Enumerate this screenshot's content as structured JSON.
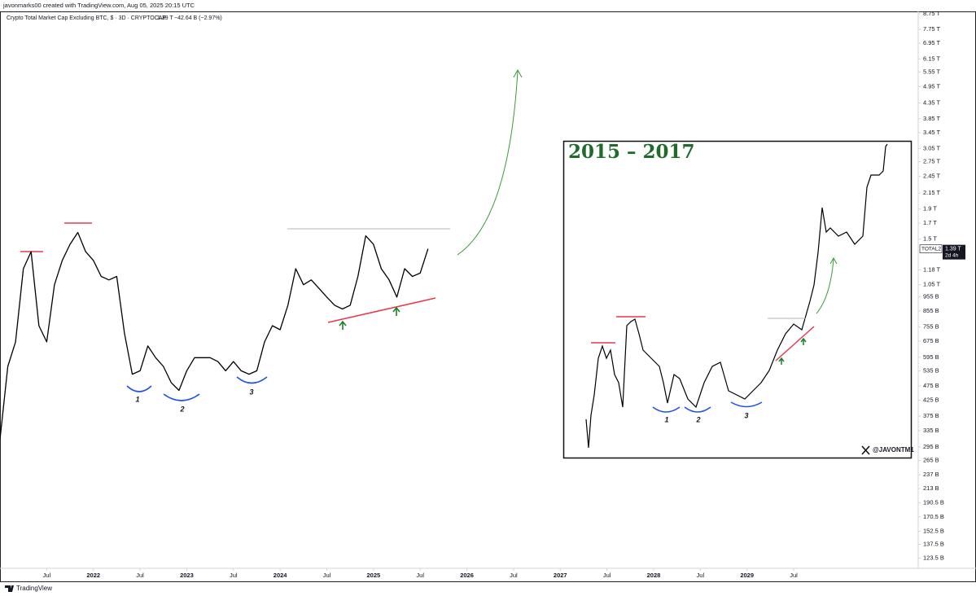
{
  "header": {
    "credit": "javonmarks00 created with TradingView.com, Aug 05, 2025 20:15 UTC",
    "symbol": "Crypto Total Market Cap Excluding BTC, $ · 3D · CRYPTOCAP",
    "last": "1.39 T",
    "change": "−42.64 B (−2.97%)"
  },
  "chart_data": {
    "type": "line",
    "color": "#000000",
    "log_scale": true,
    "grid": false,
    "x": [
      "2021-01",
      "2021-02",
      "2021-03",
      "2021-04",
      "2021-05",
      "2021-06",
      "2021-07",
      "2021-08",
      "2021-09",
      "2021-10",
      "2021-11",
      "2021-12",
      "2022-01",
      "2022-02",
      "2022-03",
      "2022-04",
      "2022-05",
      "2022-06",
      "2022-07",
      "2022-08",
      "2022-09",
      "2022-10",
      "2022-11",
      "2022-12",
      "2023-01",
      "2023-02",
      "2023-03",
      "2023-04",
      "2023-05",
      "2023-06",
      "2023-07",
      "2023-08",
      "2023-09",
      "2023-10",
      "2023-11",
      "2023-12",
      "2024-01",
      "2024-02",
      "2024-03",
      "2024-04",
      "2024-05",
      "2024-06",
      "2024-07",
      "2024-08",
      "2024-09",
      "2024-10",
      "2024-11",
      "2024-12",
      "2025-01",
      "2025-02",
      "2025-03",
      "2025-04",
      "2025-05",
      "2025-06",
      "2025-07",
      "2025-08"
    ],
    "values": [
      313000000000,
      554000000000,
      671000000000,
      1190000000000,
      1360000000000,
      762000000000,
      671000000000,
      1050000000000,
      1270000000000,
      1440000000000,
      1580000000000,
      1360000000000,
      1270000000000,
      1120000000000,
      1090000000000,
      1120000000000,
      718000000000,
      521000000000,
      535000000000,
      650000000000,
      593000000000,
      554000000000,
      488000000000,
      459000000000,
      535000000000,
      593000000000,
      593000000000,
      593000000000,
      575000000000,
      535000000000,
      575000000000,
      535000000000,
      521000000000,
      535000000000,
      671000000000,
      762000000000,
      738000000000,
      894000000000,
      1190000000000,
      1050000000000,
      1090000000000,
      1020000000000,
      953000000000,
      894000000000,
      868000000000,
      894000000000,
      1120000000000,
      1540000000000,
      1440000000000,
      1190000000000,
      1090000000000,
      953000000000,
      1190000000000,
      1120000000000,
      1150000000000,
      1390000000000
    ],
    "xlim": [
      "2021-01",
      "2030-11"
    ],
    "xticks": [
      {
        "value": "2021-07",
        "label": "Jul"
      },
      {
        "value": "2022-01",
        "label": "2022"
      },
      {
        "value": "2022-07",
        "label": "Jul"
      },
      {
        "value": "2023-01",
        "label": "2023"
      },
      {
        "value": "2023-07",
        "label": "Jul"
      },
      {
        "value": "2024-01",
        "label": "2024"
      },
      {
        "value": "2024-07",
        "label": "Jul"
      },
      {
        "value": "2025-01",
        "label": "2025"
      },
      {
        "value": "2025-07",
        "label": "Jul"
      },
      {
        "value": "2026-01",
        "label": "2026"
      },
      {
        "value": "2026-07",
        "label": "Jul"
      },
      {
        "value": "2027-01",
        "label": "2027"
      },
      {
        "value": "2027-07",
        "label": "Jul"
      },
      {
        "value": "2028-01",
        "label": "2028"
      },
      {
        "value": "2028-07",
        "label": "Jul"
      },
      {
        "value": "2029-01",
        "label": "2029"
      },
      {
        "value": "2029-07",
        "label": "Jul"
      }
    ],
    "ylim": [
      114000000000,
      8920000000000
    ],
    "yticks": [
      {
        "value": 8750000000000,
        "label": "8.75 T"
      },
      {
        "value": 7750000000000,
        "label": "7.75 T"
      },
      {
        "value": 6950000000000,
        "label": "6.95 T"
      },
      {
        "value": 6150000000000,
        "label": "6.15 T"
      },
      {
        "value": 5550000000000,
        "label": "5.55 T"
      },
      {
        "value": 4950000000000,
        "label": "4.95 T"
      },
      {
        "value": 4350000000000,
        "label": "4.35 T"
      },
      {
        "value": 3850000000000,
        "label": "3.85 T"
      },
      {
        "value": 3450000000000,
        "label": "3.45 T"
      },
      {
        "value": 3050000000000,
        "label": "3.05 T"
      },
      {
        "value": 2750000000000,
        "label": "2.75 T"
      },
      {
        "value": 2450000000000,
        "label": "2.45 T"
      },
      {
        "value": 2150000000000,
        "label": "2.15 T"
      },
      {
        "value": 1900000000000,
        "label": "1.9 T"
      },
      {
        "value": 1700000000000,
        "label": "1.7 T"
      },
      {
        "value": 1500000000000,
        "label": "1.5 T"
      },
      {
        "value": 1180000000000,
        "label": "1.18 T"
      },
      {
        "value": 1050000000000,
        "label": "1.05 T"
      },
      {
        "value": 955000000000,
        "label": "955 B"
      },
      {
        "value": 855000000000,
        "label": "855 B"
      },
      {
        "value": 755000000000,
        "label": "755 B"
      },
      {
        "value": 675000000000,
        "label": "675 B"
      },
      {
        "value": 595000000000,
        "label": "595 B"
      },
      {
        "value": 535000000000,
        "label": "535 B"
      },
      {
        "value": 475000000000,
        "label": "475 B"
      },
      {
        "value": 425000000000,
        "label": "425 B"
      },
      {
        "value": 375000000000,
        "label": "375 B"
      },
      {
        "value": 335000000000,
        "label": "335 B"
      },
      {
        "value": 295000000000,
        "label": "295 B"
      },
      {
        "value": 265000000000,
        "label": "265 B"
      },
      {
        "value": 237000000000,
        "label": "237 B"
      },
      {
        "value": 213000000000,
        "label": "213 B"
      },
      {
        "value": 190500000000,
        "label": "190.5 B"
      },
      {
        "value": 170500000000,
        "label": "170.5 B"
      },
      {
        "value": 152500000000,
        "label": "152.5 B"
      },
      {
        "value": 137500000000,
        "label": "137.5 B"
      },
      {
        "value": 123500000000,
        "label": "123.5 B"
      }
    ],
    "price_tag": {
      "symbol": "TOTAL2",
      "price": "1.39 T",
      "countdown": "2d 4h"
    },
    "annotations": [
      "1",
      "2",
      "3"
    ]
  },
  "inset": {
    "title": "2015 – 2017",
    "labels": [
      "1",
      "2",
      "3"
    ],
    "handle": "@JAVONTM1"
  },
  "footer": {
    "brand": "TradingView"
  }
}
